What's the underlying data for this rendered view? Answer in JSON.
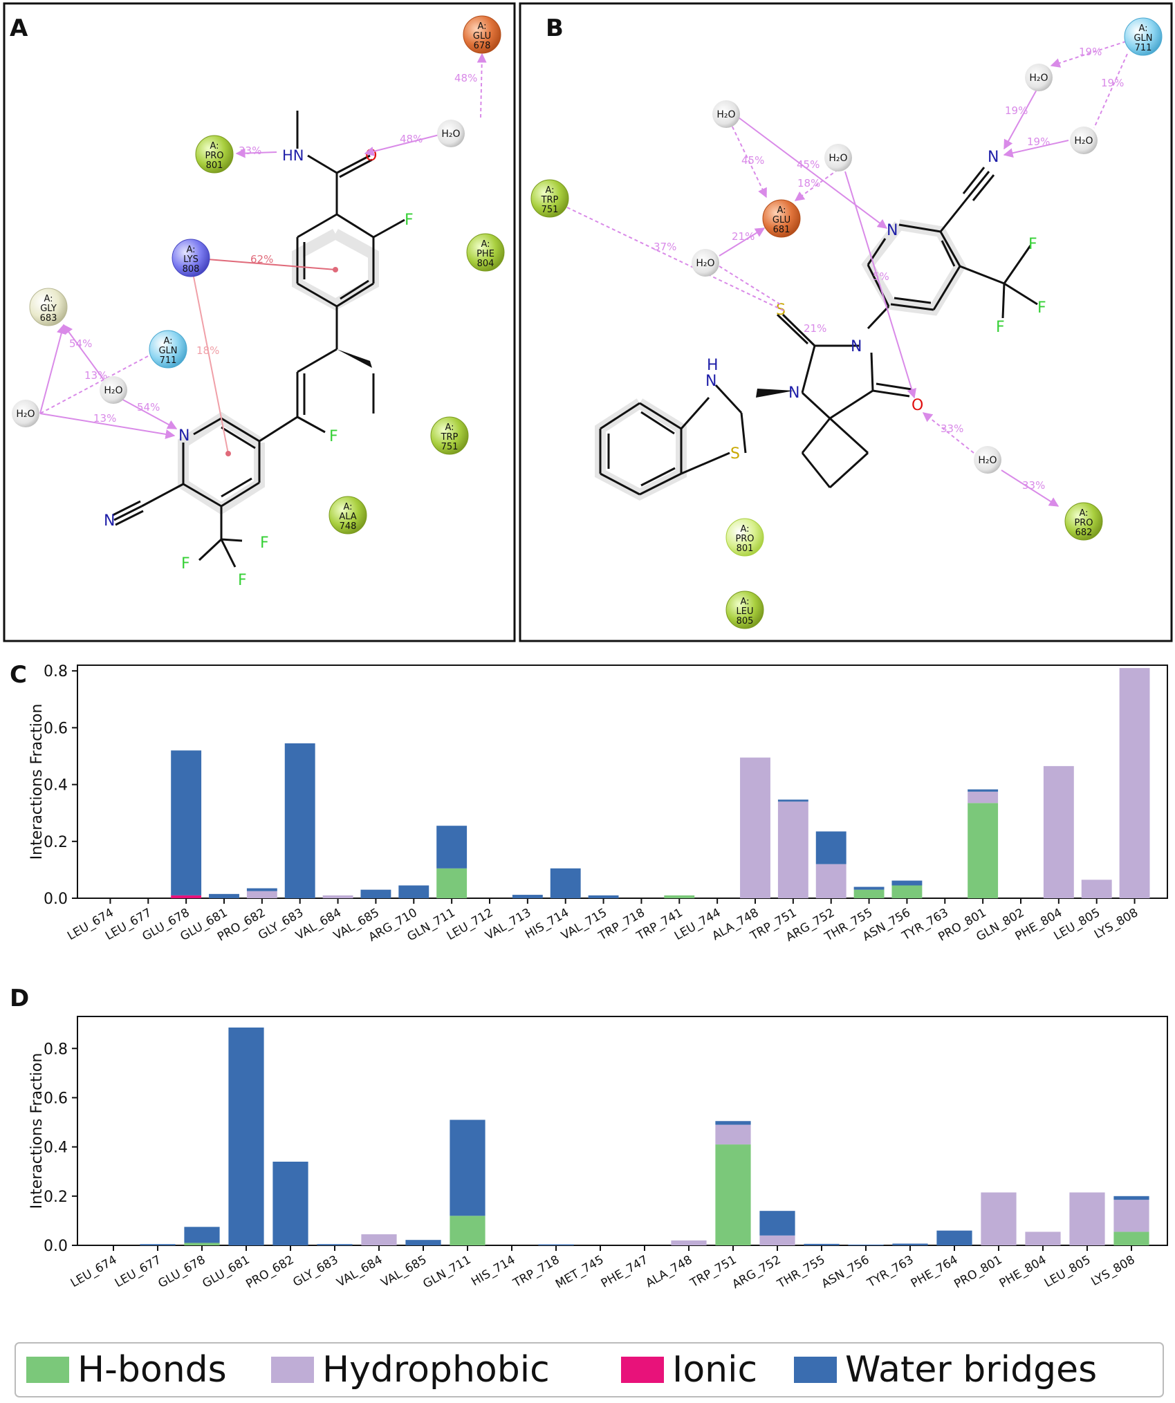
{
  "panels": {
    "A": {
      "label": "A",
      "residues": [
        {
          "id": "glu678",
          "chain": "A:",
          "name": "GLU",
          "num": "678",
          "color": "#e0733a"
        },
        {
          "id": "pro801",
          "chain": "A:",
          "name": "PRO",
          "num": "801",
          "color": "#a9cf3f"
        },
        {
          "id": "lys808",
          "chain": "A:",
          "name": "LYS",
          "num": "808",
          "color": "#7b7bf0"
        },
        {
          "id": "phe804",
          "chain": "A:",
          "name": "PHE",
          "num": "804",
          "color": "#a9cf3f"
        },
        {
          "id": "gly683",
          "chain": "A:",
          "name": "GLY",
          "num": "683",
          "color": "#e6e6c8"
        },
        {
          "id": "gln711",
          "chain": "A:",
          "name": "GLN",
          "num": "711",
          "color": "#8fd6f2"
        },
        {
          "id": "trp751",
          "chain": "A:",
          "name": "TRP",
          "num": "751",
          "color": "#a9cf3f"
        },
        {
          "id": "ala748",
          "chain": "A:",
          "name": "ALA",
          "num": "748",
          "color": "#a9cf3f"
        }
      ],
      "waters": [
        "H₂O",
        "H₂O",
        "H₂O"
      ],
      "percents": [
        "48%",
        "48%",
        "33%",
        "62%",
        "18%",
        "54%",
        "13%",
        "54%",
        "13%"
      ],
      "atoms": [
        "HN",
        "O",
        "F",
        "F",
        "N",
        "N",
        "F",
        "F",
        "F"
      ]
    },
    "B": {
      "label": "B",
      "residues": [
        {
          "id": "gln711",
          "chain": "A:",
          "name": "GLN",
          "num": "711",
          "color": "#8fd6f2"
        },
        {
          "id": "trp751",
          "chain": "A:",
          "name": "TRP",
          "num": "751",
          "color": "#a9cf3f"
        },
        {
          "id": "glu681",
          "chain": "A:",
          "name": "GLU",
          "num": "681",
          "color": "#e0733a"
        },
        {
          "id": "pro801",
          "chain": "A:",
          "name": "PRO",
          "num": "801",
          "color": "#cfe88a"
        },
        {
          "id": "pro682",
          "chain": "A:",
          "name": "PRO",
          "num": "682",
          "color": "#a9cf3f"
        },
        {
          "id": "leu805",
          "chain": "A:",
          "name": "LEU",
          "num": "805",
          "color": "#a9cf3f"
        }
      ],
      "waters": [
        "H₂O",
        "H₂O",
        "H₂O",
        "H₂O",
        "H₂O",
        "H₂O"
      ],
      "percents": [
        "19%",
        "19%",
        "19%",
        "19%",
        "45%",
        "45%",
        "18%",
        "21%",
        "37%",
        "5%",
        "21%",
        "33%",
        "33%"
      ],
      "atoms": [
        "N",
        "N",
        "F",
        "F",
        "F",
        "S",
        "N",
        "N",
        "H",
        "N",
        "S",
        "O"
      ]
    },
    "C": {
      "label": "C"
    },
    "D": {
      "label": "D"
    }
  },
  "legend": [
    {
      "label": "H-bonds",
      "color": "#7bc87a"
    },
    {
      "label": "Hydrophobic",
      "color": "#bfadd6"
    },
    {
      "label": "Ionic",
      "color": "#e8127a"
    },
    {
      "label": "Water bridges",
      "color": "#3a6db0"
    }
  ],
  "chart_data": [
    {
      "panel": "C",
      "type": "bar",
      "stacked": true,
      "ylabel": "Interactions Fraction",
      "ylim": [
        0,
        0.82
      ],
      "yticks": [
        "0.0",
        "0.2",
        "0.4",
        "0.6",
        "0.8"
      ],
      "categories": [
        "LEU_674",
        "LEU_677",
        "GLU_678",
        "GLU_681",
        "PRO_682",
        "GLY_683",
        "VAL_684",
        "VAL_685",
        "ARG_710",
        "GLN_711",
        "LEU_712",
        "VAL_713",
        "HIS_714",
        "VAL_715",
        "TRP_718",
        "TRP_741",
        "LEU_744",
        "ALA_748",
        "TRP_751",
        "ARG_752",
        "THR_755",
        "ASN_756",
        "TYR_763",
        "PRO_801",
        "GLN_802",
        "PHE_804",
        "LEU_805",
        "LYS_808"
      ],
      "series": [
        {
          "name": "H-bonds",
          "values": [
            0,
            0,
            0,
            0,
            0,
            0,
            0,
            0,
            0,
            0.105,
            0,
            0,
            0,
            0,
            0,
            0.01,
            0,
            0,
            0,
            0,
            0.03,
            0.045,
            0,
            0.335,
            0,
            0,
            0,
            0
          ]
        },
        {
          "name": "Hydrophobic",
          "values": [
            0,
            0,
            0,
            0,
            0.025,
            0,
            0.01,
            0,
            0,
            0,
            0,
            0,
            0,
            0,
            0,
            0,
            0,
            0.495,
            0.34,
            0.12,
            0,
            0,
            0,
            0.04,
            0,
            0.465,
            0.065,
            0.81
          ]
        },
        {
          "name": "Ionic",
          "values": [
            0,
            0,
            0.01,
            0,
            0,
            0,
            0,
            0,
            0,
            0,
            0,
            0,
            0,
            0,
            0,
            0,
            0,
            0,
            0,
            0,
            0,
            0,
            0,
            0,
            0,
            0,
            0,
            0
          ]
        },
        {
          "name": "Water bridges",
          "values": [
            0,
            0,
            0.51,
            0.015,
            0.01,
            0.545,
            0,
            0.03,
            0.045,
            0.15,
            0,
            0.012,
            0.105,
            0.01,
            0,
            0,
            0,
            0,
            0.007,
            0.115,
            0.01,
            0.017,
            0,
            0.008,
            0,
            0,
            0,
            0
          ]
        }
      ]
    },
    {
      "panel": "D",
      "type": "bar",
      "stacked": true,
      "ylabel": "Interactions Fraction",
      "ylim": [
        0,
        0.93
      ],
      "yticks": [
        "0.0",
        "0.2",
        "0.4",
        "0.6",
        "0.8"
      ],
      "categories": [
        "LEU_674",
        "LEU_677",
        "GLU_678",
        "GLU_681",
        "PRO_682",
        "GLY_683",
        "VAL_684",
        "VAL_685",
        "GLN_711",
        "HIS_714",
        "TRP_718",
        "MET_745",
        "PHE_747",
        "ALA_748",
        "TRP_751",
        "ARG_752",
        "THR_755",
        "ASN_756",
        "TYR_763",
        "PHE_764",
        "PRO_801",
        "PHE_804",
        "LEU_805",
        "LYS_808"
      ],
      "series": [
        {
          "name": "H-bonds",
          "values": [
            0,
            0,
            0.01,
            0,
            0,
            0,
            0,
            0,
            0.12,
            0,
            0,
            0,
            0,
            0,
            0.41,
            0,
            0,
            0,
            0,
            0,
            0,
            0,
            0,
            0.055
          ]
        },
        {
          "name": "Hydrophobic",
          "values": [
            0,
            0,
            0,
            0,
            0,
            0,
            0.045,
            0,
            0,
            0,
            0,
            0,
            0,
            0.02,
            0.08,
            0.04,
            0,
            0,
            0,
            0,
            0.215,
            0.055,
            0.215,
            0.13
          ]
        },
        {
          "name": "Ionic",
          "values": [
            0,
            0,
            0,
            0,
            0,
            0,
            0,
            0,
            0,
            0,
            0,
            0,
            0,
            0,
            0,
            0,
            0,
            0,
            0,
            0,
            0,
            0,
            0,
            0
          ]
        },
        {
          "name": "Water bridges",
          "values": [
            0,
            0.005,
            0.065,
            0.885,
            0.34,
            0.005,
            0,
            0.022,
            0.39,
            0,
            0.004,
            0,
            0,
            0,
            0.015,
            0.1,
            0.006,
            0.003,
            0.007,
            0.06,
            0,
            0,
            0,
            0.015
          ]
        }
      ]
    }
  ]
}
